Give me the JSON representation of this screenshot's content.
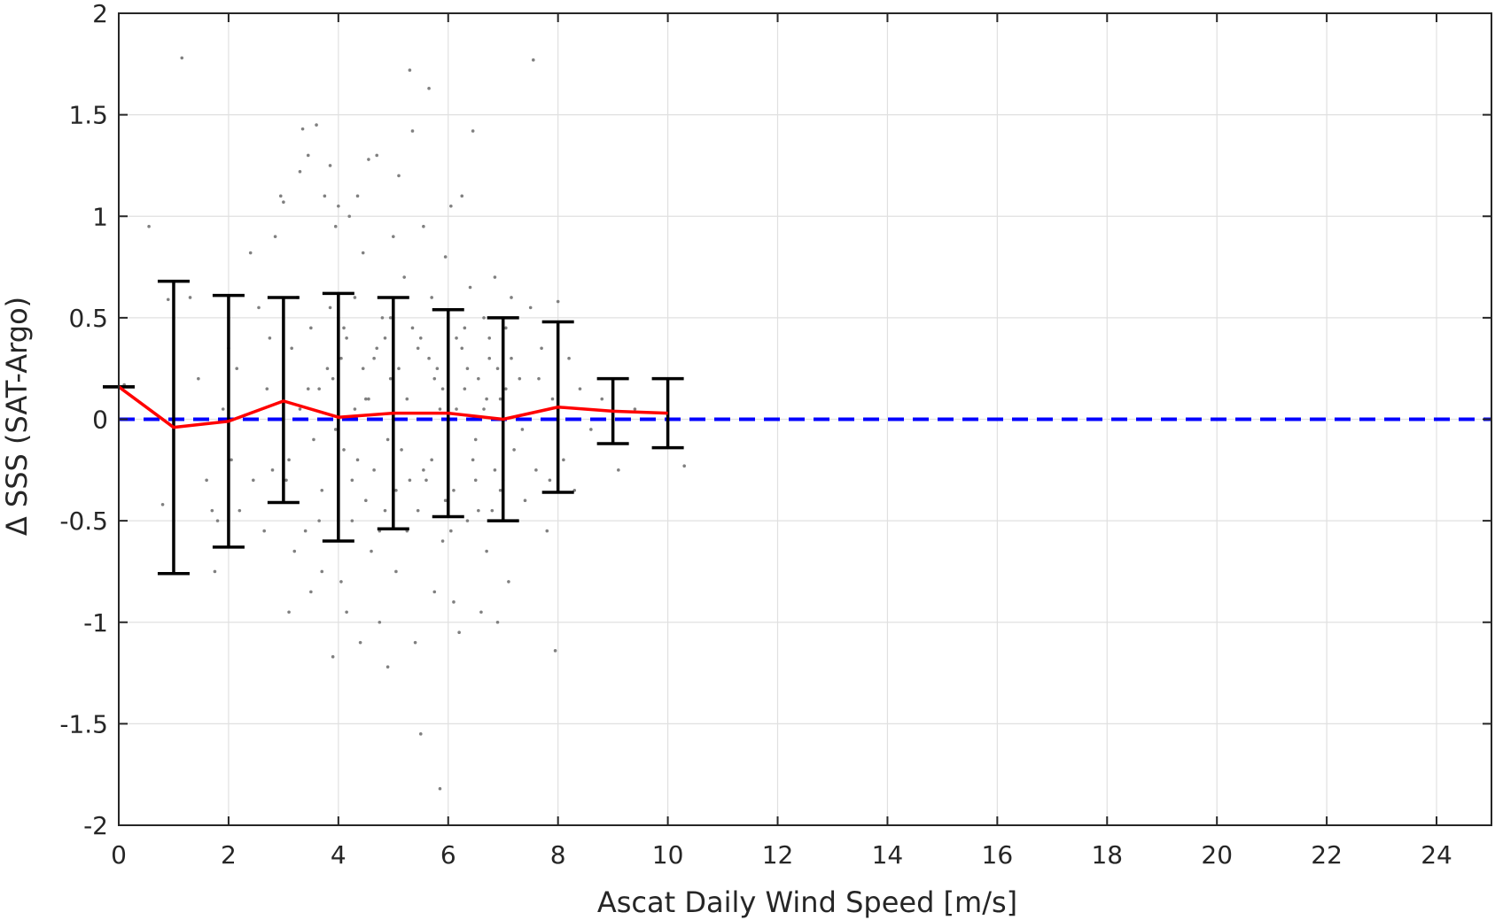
{
  "chart_data": {
    "type": "scatter",
    "xlabel": "Ascat Daily Wind Speed [m/s]",
    "ylabel": "Δ SSS (SAT-Argo)",
    "xlim": [
      0,
      25
    ],
    "ylim": [
      -2,
      2
    ],
    "x_ticks": [
      0,
      2,
      4,
      6,
      8,
      10,
      12,
      14,
      16,
      18,
      20,
      22,
      24
    ],
    "y_ticks": [
      -2,
      -1.5,
      -1,
      -0.5,
      0,
      0.5,
      1,
      1.5,
      2
    ],
    "y_tick_labels": [
      "-2",
      "-1.5",
      "-1",
      "-0.5",
      "0",
      "0.5",
      "1",
      "1.5",
      "2"
    ],
    "grid": true,
    "colors": {
      "scatter": "#808080",
      "mean_line": "#ff0000",
      "zero_line": "#0000ff",
      "error_bars": "#000000",
      "grid": "#e0e0e0",
      "axes": "#262626"
    },
    "mean_line": {
      "x": [
        0,
        1,
        2,
        3,
        4,
        5,
        6,
        7,
        8,
        9,
        10
      ],
      "y": [
        0.16,
        -0.04,
        -0.01,
        0.09,
        0.01,
        0.03,
        0.03,
        0.0,
        0.06,
        0.04,
        0.03
      ]
    },
    "error_bars": [
      {
        "x": 0,
        "lower": 0.16,
        "upper": 0.16
      },
      {
        "x": 1,
        "lower": -0.76,
        "upper": 0.68
      },
      {
        "x": 2,
        "lower": -0.63,
        "upper": 0.61
      },
      {
        "x": 3,
        "lower": -0.41,
        "upper": 0.6
      },
      {
        "x": 4,
        "lower": -0.6,
        "upper": 0.62
      },
      {
        "x": 5,
        "lower": -0.54,
        "upper": 0.6
      },
      {
        "x": 6,
        "lower": -0.48,
        "upper": 0.54
      },
      {
        "x": 7,
        "lower": -0.5,
        "upper": 0.5
      },
      {
        "x": 8,
        "lower": -0.36,
        "upper": 0.48
      },
      {
        "x": 9,
        "lower": -0.12,
        "upper": 0.2
      },
      {
        "x": 10,
        "lower": -0.14,
        "upper": 0.2
      }
    ],
    "zero_line_y": 0,
    "scatter_points": [
      [
        0.1,
        0.17
      ],
      [
        0.55,
        0.95
      ],
      [
        0.8,
        -0.42
      ],
      [
        1.15,
        1.78
      ],
      [
        0.9,
        0.59
      ],
      [
        1.3,
        0.6
      ],
      [
        1.45,
        0.2
      ],
      [
        1.6,
        -0.3
      ],
      [
        1.7,
        -0.45
      ],
      [
        1.8,
        -0.5
      ],
      [
        1.75,
        -0.75
      ],
      [
        1.9,
        0.05
      ],
      [
        2.0,
        0.35
      ],
      [
        2.05,
        -0.2
      ],
      [
        2.15,
        0.25
      ],
      [
        2.2,
        -0.45
      ],
      [
        2.3,
        0.02
      ],
      [
        2.4,
        0.82
      ],
      [
        2.45,
        -0.3
      ],
      [
        2.55,
        0.55
      ],
      [
        2.65,
        -0.55
      ],
      [
        2.7,
        0.15
      ],
      [
        2.75,
        0.4
      ],
      [
        2.8,
        -0.25
      ],
      [
        2.85,
        0.9
      ],
      [
        2.95,
        1.1
      ],
      [
        3.0,
        1.07
      ],
      [
        3.05,
        -0.3
      ],
      [
        3.1,
        -0.95
      ],
      [
        3.15,
        0.35
      ],
      [
        3.2,
        -0.65
      ],
      [
        3.25,
        0.6
      ],
      [
        3.3,
        1.22
      ],
      [
        3.35,
        1.43
      ],
      [
        3.4,
        -0.55
      ],
      [
        3.45,
        1.3
      ],
      [
        3.5,
        -0.85
      ],
      [
        3.55,
        -0.1
      ],
      [
        3.6,
        1.45
      ],
      [
        3.65,
        0.15
      ],
      [
        3.7,
        -0.75
      ],
      [
        3.75,
        1.1
      ],
      [
        3.8,
        0.25
      ],
      [
        3.85,
        1.25
      ],
      [
        3.9,
        -1.17
      ],
      [
        3.95,
        0.95
      ],
      [
        4.0,
        1.05
      ],
      [
        4.05,
        -0.8
      ],
      [
        4.1,
        0.45
      ],
      [
        4.15,
        -0.95
      ],
      [
        4.2,
        1.0
      ],
      [
        4.25,
        -0.3
      ],
      [
        4.3,
        0.6
      ],
      [
        4.35,
        1.1
      ],
      [
        4.4,
        -1.1
      ],
      [
        4.45,
        0.82
      ],
      [
        4.5,
        0.1
      ],
      [
        4.55,
        1.28
      ],
      [
        4.6,
        -0.65
      ],
      [
        4.65,
        0.3
      ],
      [
        4.7,
        1.3
      ],
      [
        4.75,
        -1.0
      ],
      [
        4.8,
        0.5
      ],
      [
        4.85,
        -0.45
      ],
      [
        4.9,
        -1.22
      ],
      [
        4.95,
        0.2
      ],
      [
        5.0,
        0.9
      ],
      [
        5.05,
        -0.75
      ],
      [
        5.1,
        1.2
      ],
      [
        5.15,
        -0.15
      ],
      [
        5.2,
        0.7
      ],
      [
        5.25,
        -0.55
      ],
      [
        5.3,
        1.72
      ],
      [
        5.35,
        1.42
      ],
      [
        5.4,
        -1.1
      ],
      [
        5.45,
        0.35
      ],
      [
        5.5,
        -1.55
      ],
      [
        5.55,
        0.95
      ],
      [
        5.6,
        -0.3
      ],
      [
        5.65,
        1.63
      ],
      [
        5.7,
        0.6
      ],
      [
        5.75,
        -0.85
      ],
      [
        5.8,
        0.25
      ],
      [
        5.85,
        -1.82
      ],
      [
        5.9,
        -0.6
      ],
      [
        5.95,
        0.8
      ],
      [
        6.0,
        -0.2
      ],
      [
        6.05,
        1.05
      ],
      [
        6.1,
        -0.9
      ],
      [
        6.15,
        0.4
      ],
      [
        6.2,
        -1.05
      ],
      [
        6.25,
        1.1
      ],
      [
        6.3,
        0.15
      ],
      [
        6.35,
        -0.5
      ],
      [
        6.4,
        0.65
      ],
      [
        6.45,
        1.42
      ],
      [
        6.5,
        -0.3
      ],
      [
        6.55,
        0.2
      ],
      [
        6.6,
        -0.95
      ],
      [
        6.65,
        0.5
      ],
      [
        6.7,
        -0.65
      ],
      [
        6.75,
        0.3
      ],
      [
        6.8,
        -0.45
      ],
      [
        6.85,
        0.7
      ],
      [
        6.9,
        -1.0
      ],
      [
        6.95,
        0.1
      ],
      [
        7.0,
        -0.3
      ],
      [
        7.05,
        0.45
      ],
      [
        7.1,
        -0.8
      ],
      [
        7.15,
        0.6
      ],
      [
        7.2,
        -0.15
      ],
      [
        7.3,
        0.2
      ],
      [
        7.4,
        -0.4
      ],
      [
        7.5,
        0.55
      ],
      [
        7.55,
        1.77
      ],
      [
        7.6,
        -0.25
      ],
      [
        7.7,
        0.35
      ],
      [
        7.8,
        -0.55
      ],
      [
        7.9,
        0.1
      ],
      [
        8.0,
        0.58
      ],
      [
        8.1,
        -0.2
      ],
      [
        8.2,
        0.3
      ],
      [
        8.3,
        -0.35
      ],
      [
        8.4,
        0.15
      ],
      [
        7.95,
        -1.14
      ],
      [
        8.6,
        -0.05
      ],
      [
        8.8,
        0.1
      ],
      [
        9.1,
        -0.25
      ],
      [
        9.4,
        0.05
      ],
      [
        10.3,
        -0.23
      ],
      [
        3.1,
        -0.2
      ],
      [
        3.3,
        0.05
      ],
      [
        3.5,
        0.45
      ],
      [
        3.7,
        -0.35
      ],
      [
        3.9,
        0.2
      ],
      [
        4.1,
        -0.15
      ],
      [
        4.3,
        0.05
      ],
      [
        4.5,
        -0.4
      ],
      [
        4.7,
        0.35
      ],
      [
        4.9,
        -0.1
      ],
      [
        5.1,
        0.25
      ],
      [
        5.3,
        -0.3
      ],
      [
        5.5,
        0.4
      ],
      [
        5.7,
        -0.2
      ],
      [
        5.9,
        0.15
      ],
      [
        6.1,
        -0.35
      ],
      [
        6.3,
        0.45
      ],
      [
        6.5,
        -0.1
      ],
      [
        6.7,
        0.1
      ],
      [
        6.9,
        0.25
      ],
      [
        3.45,
        0.15
      ],
      [
        3.65,
        -0.5
      ],
      [
        3.85,
        0.55
      ],
      [
        4.05,
        0.3
      ],
      [
        4.25,
        -0.5
      ],
      [
        4.45,
        0.25
      ],
      [
        4.65,
        -0.25
      ],
      [
        4.85,
        0.4
      ],
      [
        5.05,
        -0.35
      ],
      [
        5.25,
        0.1
      ],
      [
        5.45,
        -0.45
      ],
      [
        5.65,
        0.3
      ],
      [
        5.85,
        0.05
      ],
      [
        6.05,
        -0.55
      ],
      [
        6.25,
        0.35
      ],
      [
        6.45,
        -0.2
      ],
      [
        6.65,
        0.05
      ],
      [
        6.85,
        -0.25
      ],
      [
        7.05,
        0.15
      ],
      [
        7.25,
        -0.5
      ],
      [
        3.95,
        -0.05
      ],
      [
        4.15,
        0.4
      ],
      [
        4.35,
        -0.2
      ],
      [
        4.55,
        0.1
      ],
      [
        4.75,
        -0.55
      ],
      [
        4.95,
        0.5
      ],
      [
        5.15,
        0.0
      ],
      [
        5.35,
        0.45
      ],
      [
        5.55,
        -0.25
      ],
      [
        5.75,
        0.2
      ],
      [
        5.95,
        -0.4
      ],
      [
        6.15,
        0.05
      ],
      [
        6.35,
        0.25
      ],
      [
        6.55,
        -0.45
      ],
      [
        6.75,
        0.4
      ],
      [
        6.95,
        -0.35
      ],
      [
        7.15,
        0.3
      ],
      [
        7.35,
        -0.05
      ],
      [
        7.65,
        0.2
      ],
      [
        7.85,
        -0.3
      ]
    ]
  }
}
